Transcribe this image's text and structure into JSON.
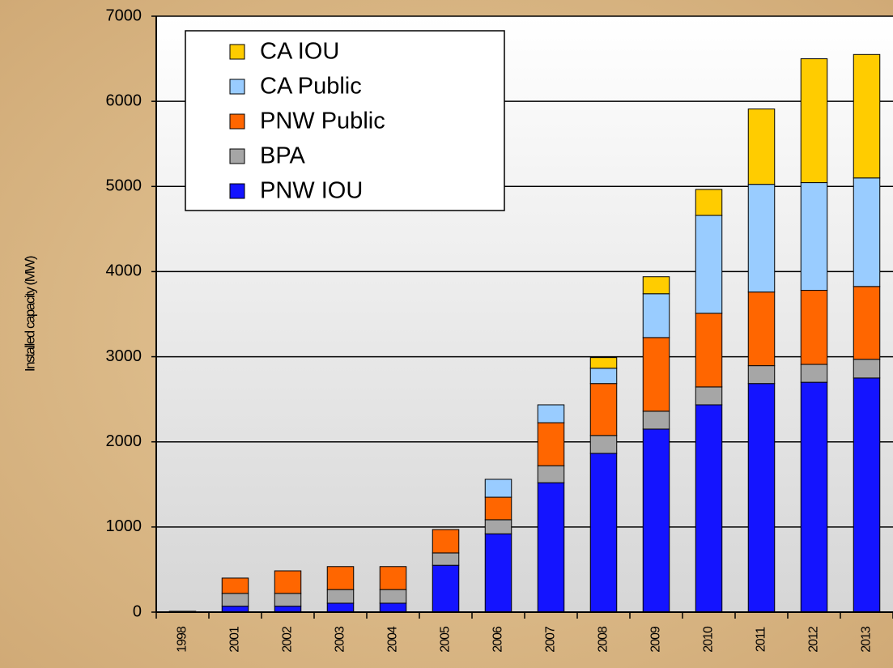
{
  "chart_data": {
    "type": "stacked_bar",
    "y_label": "Installed capacity (MW)",
    "categories": [
      "1998",
      "2001",
      "2002",
      "2003",
      "2004",
      "2005",
      "2006",
      "2007",
      "2008",
      "2009",
      "2010",
      "2011",
      "2012",
      "2013"
    ],
    "series": [
      {
        "name": "PNW IOU",
        "color": "#1414ff",
        "values": [
          10,
          70,
          70,
          105,
          105,
          550,
          920,
          1520,
          1865,
          2150,
          2435,
          2685,
          2700,
          2750
        ]
      },
      {
        "name": "BPA",
        "color": "#a6a6a6",
        "values": [
          0,
          150,
          150,
          160,
          160,
          145,
          165,
          200,
          210,
          210,
          210,
          210,
          210,
          220
        ]
      },
      {
        "name": "PNW Public",
        "color": "#ff6600",
        "values": [
          0,
          180,
          265,
          270,
          270,
          275,
          265,
          505,
          610,
          865,
          865,
          865,
          870,
          855
        ]
      },
      {
        "name": "CA Public",
        "color": "#99ccff",
        "values": [
          0,
          0,
          0,
          0,
          0,
          0,
          210,
          210,
          180,
          515,
          1150,
          1265,
          1265,
          1275
        ]
      },
      {
        "name": "CA IOU",
        "color": "#ffcc00",
        "values": [
          0,
          0,
          0,
          0,
          0,
          0,
          0,
          0,
          125,
          200,
          305,
          885,
          1455,
          1450
        ]
      }
    ],
    "ylim": [
      0,
      7000
    ],
    "yticks": [
      0,
      1000,
      2000,
      3000,
      4000,
      5000,
      6000,
      7000
    ],
    "grid": true,
    "legend": "upper left"
  }
}
